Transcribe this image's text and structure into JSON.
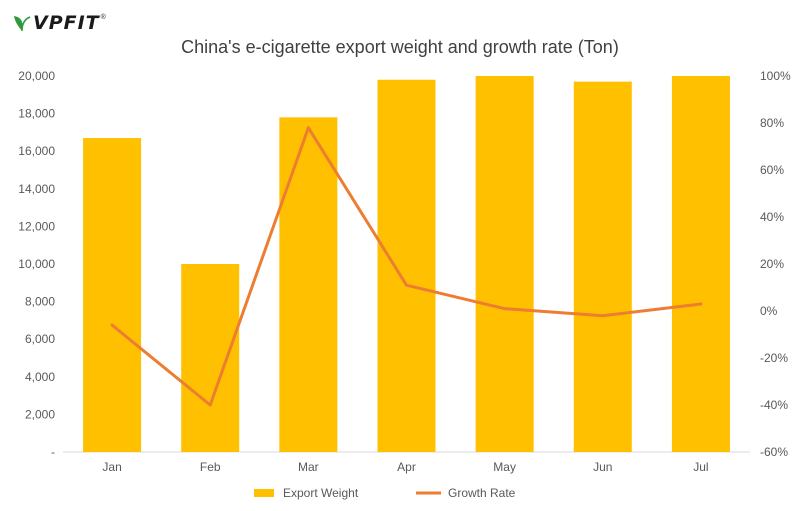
{
  "brand": {
    "name": "VPFIT",
    "registered": "®",
    "accent": "#2e9a3c"
  },
  "chart_data": {
    "type": "bar",
    "title": "China's e-cigarette export weight and growth rate (Ton)",
    "categories": [
      "Jan",
      "Feb",
      "Mar",
      "Apr",
      "May",
      "Jun",
      "Jul"
    ],
    "series": [
      {
        "name": "Export Weight",
        "kind": "bar",
        "axis": "left",
        "color": "#FFC000",
        "values": [
          16700,
          10000,
          17800,
          19800,
          20000,
          19700,
          20000
        ]
      },
      {
        "name": "Growth Rate",
        "kind": "line",
        "axis": "right",
        "color": "#ED7D31",
        "values": [
          -6,
          -40,
          78,
          11,
          1,
          -2,
          3
        ]
      }
    ],
    "y_left": {
      "ylim": [
        0,
        20000
      ],
      "ticks": [
        "-",
        "2,000",
        "4,000",
        "6,000",
        "8,000",
        "10,000",
        "12,000",
        "14,000",
        "16,000",
        "18,000",
        "20,000"
      ]
    },
    "y_right": {
      "ylim": [
        -60,
        100
      ],
      "ticks": [
        "-60%",
        "-40%",
        "-20%",
        "0%",
        "20%",
        "40%",
        "60%",
        "80%",
        "100%"
      ]
    },
    "grid": false,
    "legend": "bottom"
  }
}
